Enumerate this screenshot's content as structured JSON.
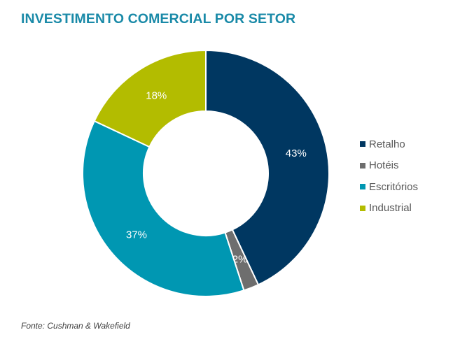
{
  "chart_data": {
    "type": "pie",
    "donut": true,
    "title": "INVESTIMENTO COMERCIAL POR SETOR",
    "categories": [
      "Retalho",
      "Hotéis",
      "Escritórios",
      "Industrial"
    ],
    "values": [
      43,
      2,
      37,
      18
    ],
    "data_labels": [
      "43%",
      "2%",
      "37%",
      "18%"
    ],
    "colors": [
      "#003761",
      "#6e6e6e",
      "#0097b2",
      "#b3bc00"
    ],
    "label_colors": [
      "#ffffff",
      "#ffffff",
      "#ffffff",
      "#ffffff"
    ],
    "legend_position": "right",
    "start": "top",
    "direction": "clockwise"
  },
  "source": "Fonte: Cushman & Wakefield"
}
